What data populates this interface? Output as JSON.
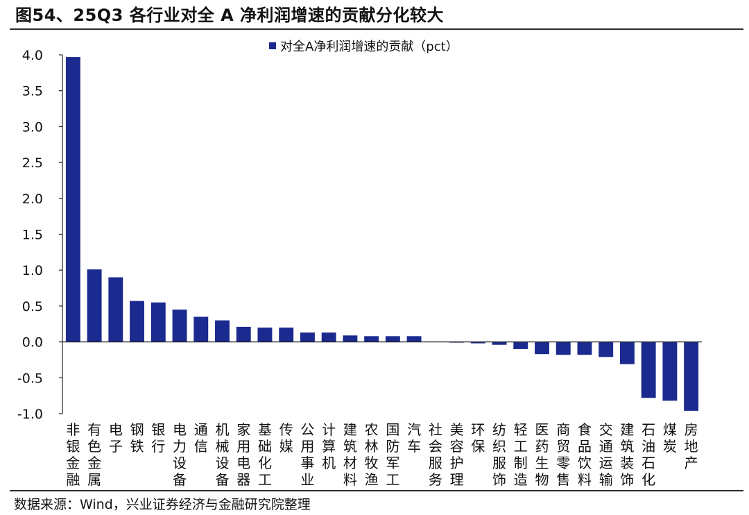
{
  "figure": {
    "title": "图54、25Q3 各行业对全 A 净利润增速的贡献分化较大",
    "source": "数据来源：Wind，兴业证券经济与金融研究院整理"
  },
  "chart_data": {
    "type": "bar",
    "title": "",
    "xlabel": "",
    "ylabel": "",
    "ylim": [
      -1.0,
      4.0
    ],
    "yticks": [
      4.0,
      3.5,
      3.0,
      2.5,
      2.0,
      1.5,
      1.0,
      0.5,
      0.0,
      -0.5,
      -1.0
    ],
    "ytick_labels": [
      "4.0",
      "3.5",
      "3.0",
      "2.5",
      "2.0",
      "1.5",
      "1.0",
      "0.5",
      "0.0",
      "-0.5",
      "-1.0"
    ],
    "grid": false,
    "legend_position": "top-center",
    "color": "#1b2a8f",
    "categories": [
      "非银金融",
      "有色金属",
      "电子",
      "钢铁",
      "银行",
      "电力设备",
      "通信",
      "机械设备",
      "家用电器",
      "基础化工",
      "传媒",
      "公用事业",
      "计算机",
      "建筑材料",
      "农林牧渔",
      "国防军工",
      "汽车",
      "社会服务",
      "美容护理",
      "环保",
      "纺织服饰",
      "轻工制造",
      "医药生物",
      "商贸零售",
      "食品饮料",
      "交通运输",
      "建筑装饰",
      "石油石化",
      "煤炭",
      "房地产"
    ],
    "series": [
      {
        "name": "对全A净利润增速的贡献（pct）",
        "values": [
          3.97,
          1.01,
          0.9,
          0.57,
          0.55,
          0.45,
          0.35,
          0.3,
          0.21,
          0.2,
          0.2,
          0.13,
          0.13,
          0.09,
          0.08,
          0.08,
          0.08,
          0.0,
          -0.01,
          -0.02,
          -0.04,
          -0.1,
          -0.17,
          -0.18,
          -0.18,
          -0.21,
          -0.31,
          -0.78,
          -0.82,
          -0.96
        ]
      }
    ]
  }
}
